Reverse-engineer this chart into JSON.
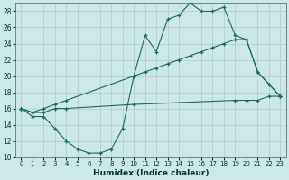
{
  "xlabel": "Humidex (Indice chaleur)",
  "background_color": "#cce8e8",
  "grid_color": "#b0c8c8",
  "line_color": "#1a6b5a",
  "xlim": [
    -0.5,
    23.5
  ],
  "ylim": [
    10,
    29
  ],
  "yticks": [
    10,
    12,
    14,
    16,
    18,
    20,
    22,
    24,
    26,
    28
  ],
  "xticks": [
    0,
    1,
    2,
    3,
    4,
    5,
    6,
    7,
    8,
    9,
    10,
    11,
    12,
    13,
    14,
    15,
    16,
    17,
    18,
    19,
    20,
    21,
    22,
    23
  ],
  "line1_x": [
    0,
    1,
    2,
    3,
    4,
    5,
    6,
    7,
    8,
    9,
    10,
    11,
    12,
    13,
    14,
    15,
    16,
    17,
    18,
    19,
    20,
    21,
    22,
    23
  ],
  "line1_y": [
    16,
    15,
    15,
    13.5,
    12,
    11,
    10.5,
    10.5,
    11,
    13.5,
    20,
    25,
    23,
    27,
    27.5,
    29,
    28,
    28,
    28.5,
    25,
    24.5,
    20.5,
    19,
    17.5
  ],
  "line2_x": [
    0,
    1,
    2,
    3,
    4,
    10,
    11,
    12,
    13,
    14,
    15,
    16,
    17,
    18,
    19,
    20,
    21,
    22,
    23
  ],
  "line2_y": [
    16,
    15.5,
    16,
    16.5,
    17,
    20,
    20.5,
    21,
    21.5,
    22,
    22.5,
    23,
    23.5,
    24,
    24.5,
    24.5,
    20.5,
    19,
    17.5
  ],
  "line3_x": [
    0,
    1,
    2,
    3,
    4,
    10,
    19,
    20,
    21,
    22,
    23
  ],
  "line3_y": [
    16,
    15.5,
    15.5,
    16,
    16,
    16.5,
    17,
    17,
    17,
    17.5,
    17.5
  ]
}
